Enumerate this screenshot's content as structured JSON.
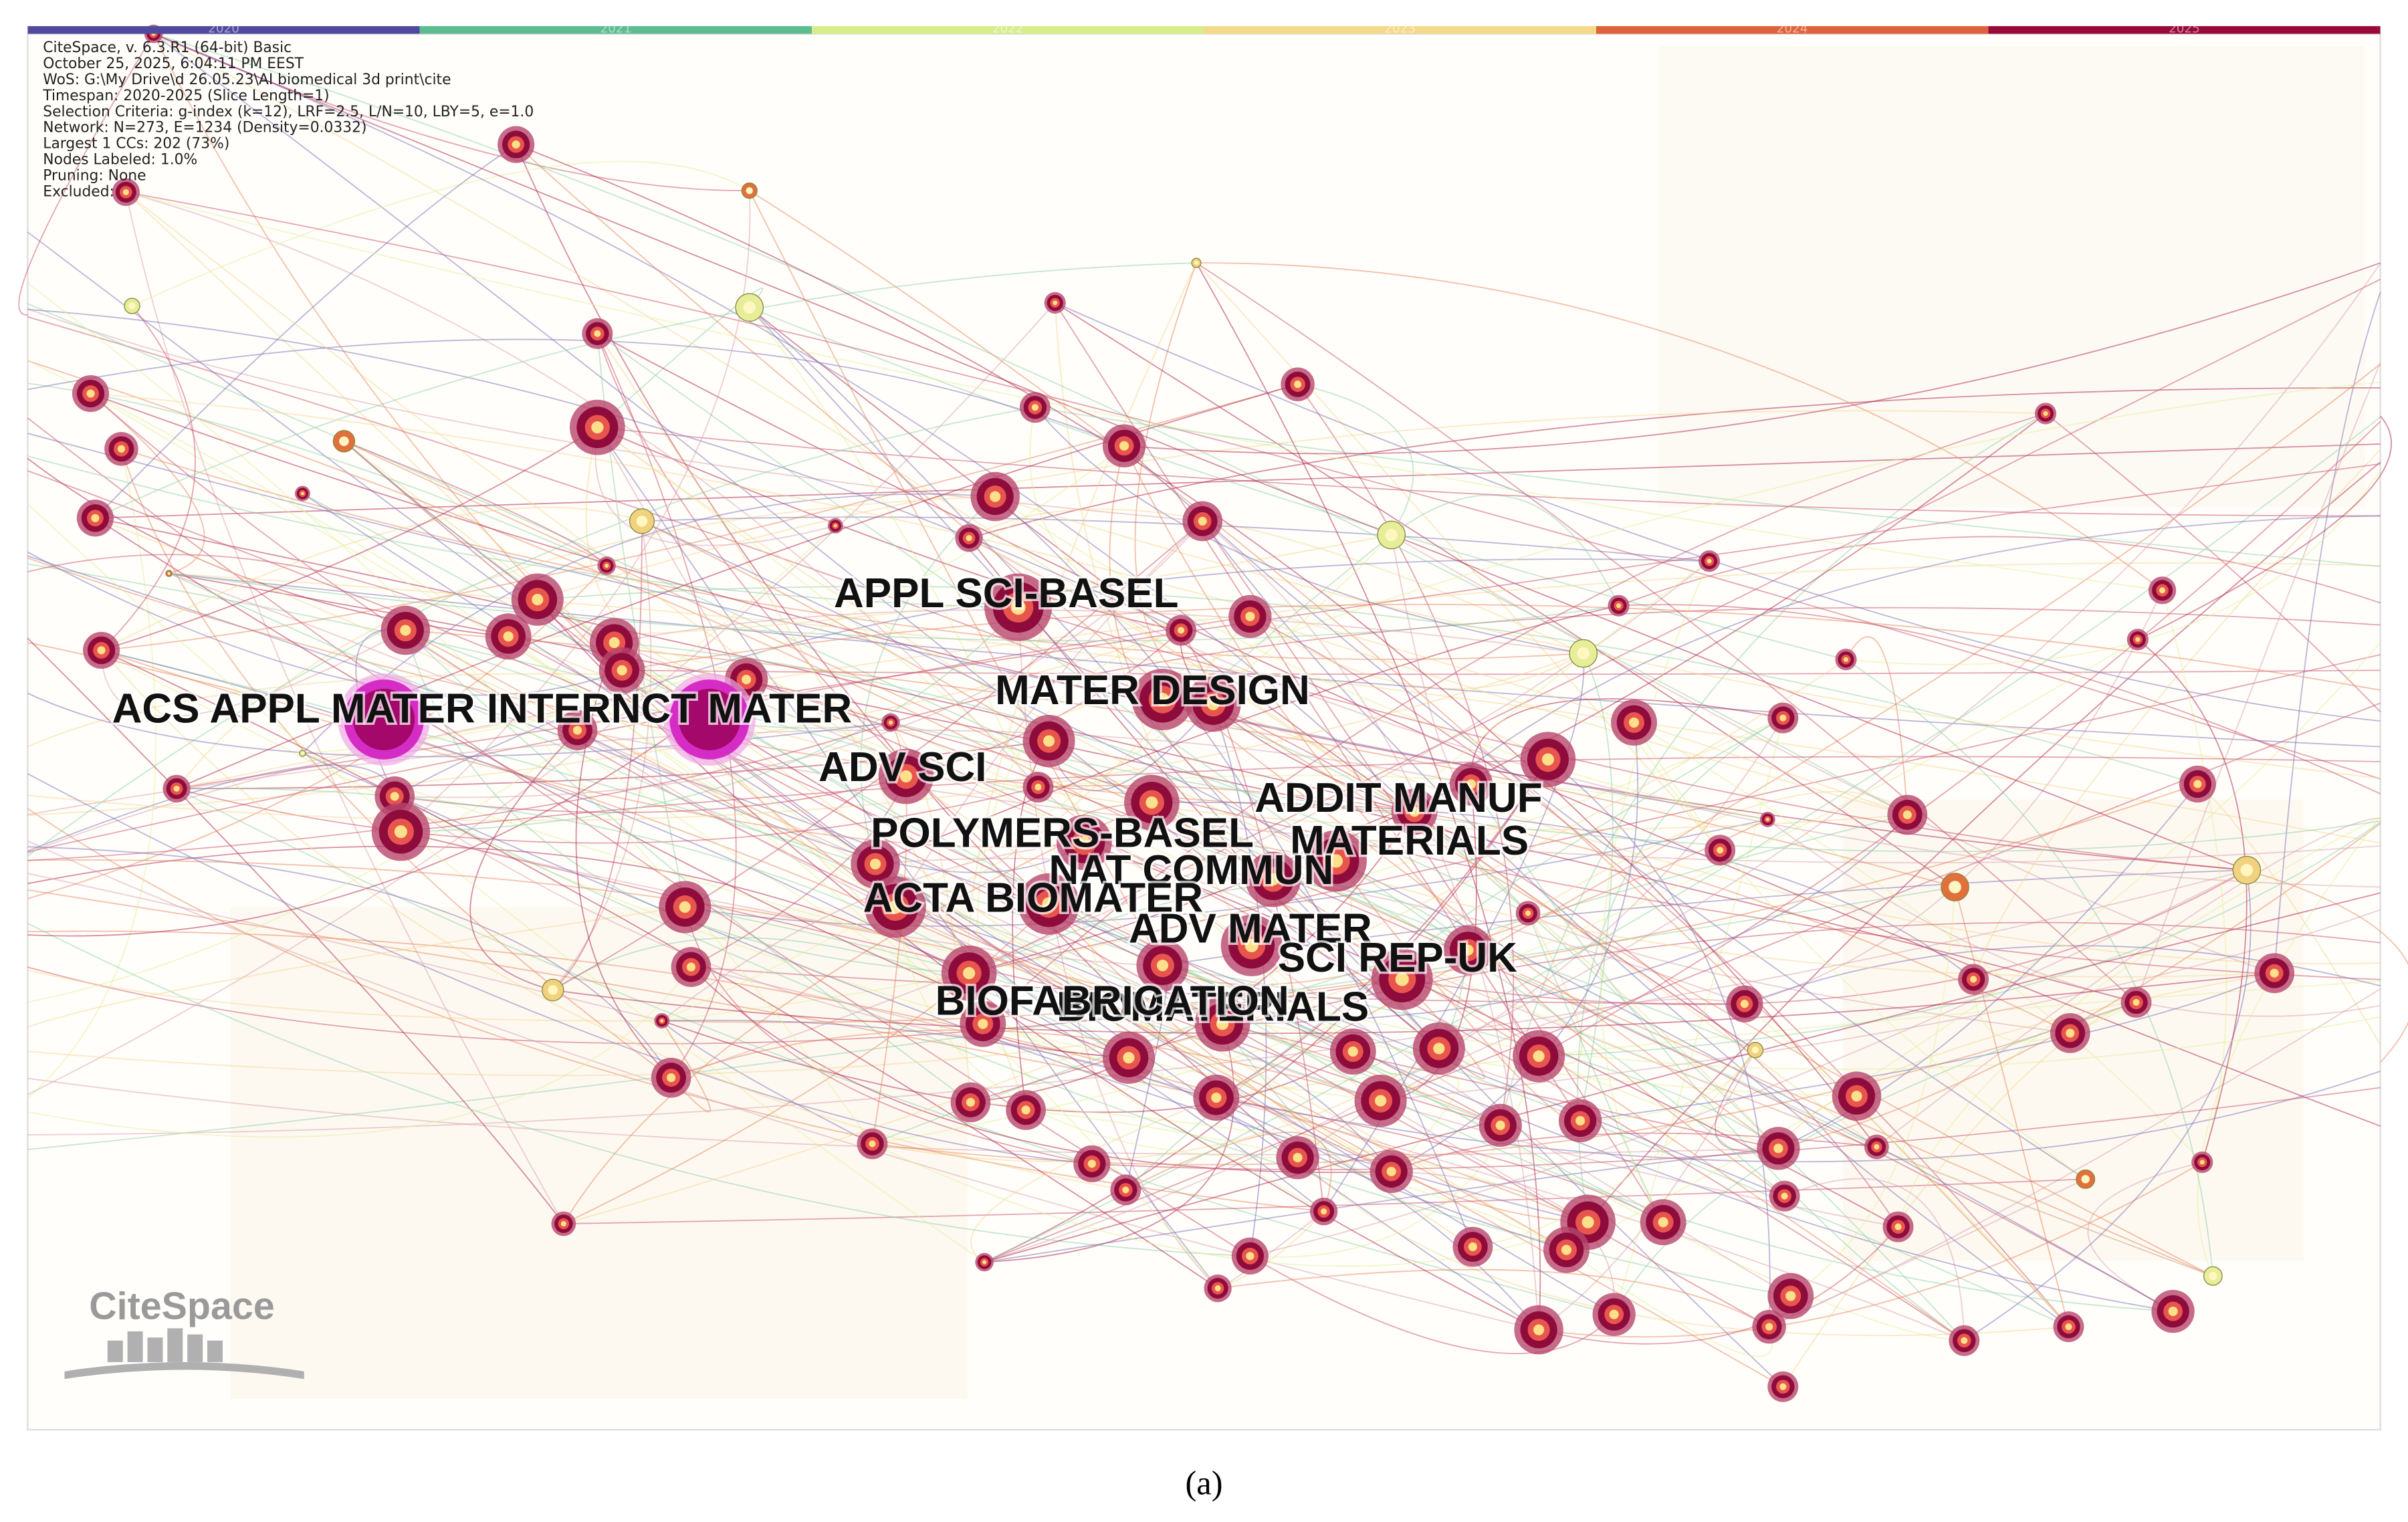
{
  "header": {
    "info_lines": [
      "CiteSpace, v. 6.3.R1 (64-bit) Basic",
      "October 25, 2025, 6:04:11 PM EEST",
      "WoS: G:\\My Drive\\d 26.05.23\\AI biomedical 3d print\\cite",
      "Timespan: 2020-2025 (Slice Length=1)",
      "Selection Criteria: g-index (k=12), LRF=2.5, L/N=10, LBY=5, e=1.0",
      "Network: N=273, E=1234 (Density=0.0332)",
      "Largest 1 CCs: 202 (73%)",
      "Nodes Labeled: 1.0%",
      "Pruning: None",
      "Excluded:"
    ]
  },
  "timeline": {
    "years": [
      {
        "label": "2020",
        "color": "#4f4a9e"
      },
      {
        "label": "2021",
        "color": "#5dbd8e"
      },
      {
        "label": "2022",
        "color": "#d8ec8c"
      },
      {
        "label": "2023",
        "color": "#f5d98a"
      },
      {
        "label": "2024",
        "color": "#e0623c"
      },
      {
        "label": "2025",
        "color": "#990a3b"
      }
    ]
  },
  "labels": [
    "ACS APPL MATER INTERNCT MATER",
    "APPL SCI-BASEL",
    "MATER DESIGN",
    "ADV SCI",
    "ADDIT MANUF",
    "MATERIALS",
    "POLYMERS-BASEL",
    "NAT COMMUN",
    "ACTA BIOMATER",
    "ADV MATER",
    "SCI REP-UK",
    "BIOMATERIALS",
    "BIOFABRICATION"
  ],
  "logo": "CiteSpace",
  "caption": "(a)"
}
